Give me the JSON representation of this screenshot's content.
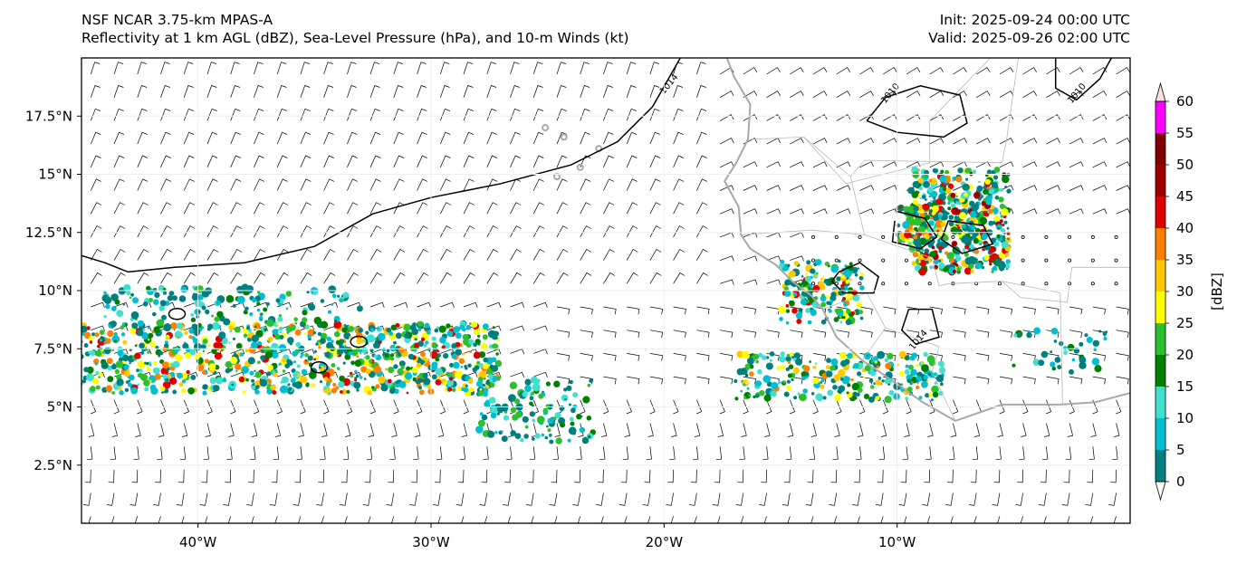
{
  "header": {
    "left_line1": "NSF NCAR 3.75-km MPAS-A",
    "left_line2": "Reflectivity at 1 km AGL (dBZ), Sea-Level Pressure (hPa), and 10-m Winds (kt)",
    "right_line1": "Init: 2025-09-24 00:00 UTC",
    "right_line2": "Valid: 2025-09-26 02:00 UTC"
  },
  "map": {
    "extent": {
      "lon_min": -45,
      "lon_max": 0,
      "lat_min": 0,
      "lat_max": 20
    },
    "lon_ticks": [
      {
        "lon": -40,
        "label": "40°W"
      },
      {
        "lon": -30,
        "label": "30°W"
      },
      {
        "lon": -20,
        "label": "20°W"
      },
      {
        "lon": -10,
        "label": "10°W"
      }
    ],
    "lat_ticks": [
      {
        "lat": 17.5,
        "label": "17.5°N"
      },
      {
        "lat": 15,
        "label": "15°N"
      },
      {
        "lat": 12.5,
        "label": "12.5°N"
      },
      {
        "lat": 10,
        "label": "10°N"
      },
      {
        "lat": 7.5,
        "label": "7.5°N"
      },
      {
        "lat": 5,
        "label": "5°N"
      },
      {
        "lat": 2.5,
        "label": "2.5°N"
      }
    ],
    "pressure_contour_labels": [
      {
        "label": "1014",
        "lon": -19.7,
        "lat": 18.8
      },
      {
        "label": "1010",
        "lon": -10.2,
        "lat": 18.4
      },
      {
        "label": "1010",
        "lon": -2.2,
        "lat": 18.4
      },
      {
        "label": "1014",
        "lon": -9.0,
        "lat": 7.8
      }
    ]
  },
  "colorbar": {
    "unit_label": "[dBZ]",
    "levels": [
      0,
      5,
      10,
      15,
      20,
      25,
      30,
      35,
      40,
      45,
      50,
      55,
      60
    ],
    "colors": [
      "#ffffff",
      "#008080",
      "#00bfd0",
      "#40e0d0",
      "#008000",
      "#2ebf2e",
      "#ffff00",
      "#ffc800",
      "#ff8000",
      "#e00000",
      "#a00000",
      "#800000",
      "#ff00ff",
      "#ffe0d8"
    ],
    "extend": "both"
  },
  "colors": {
    "coastline": "#a8a8a8",
    "borders": "#b8b8b8",
    "isobar": "#000000",
    "wind_barb": "#000000"
  }
}
